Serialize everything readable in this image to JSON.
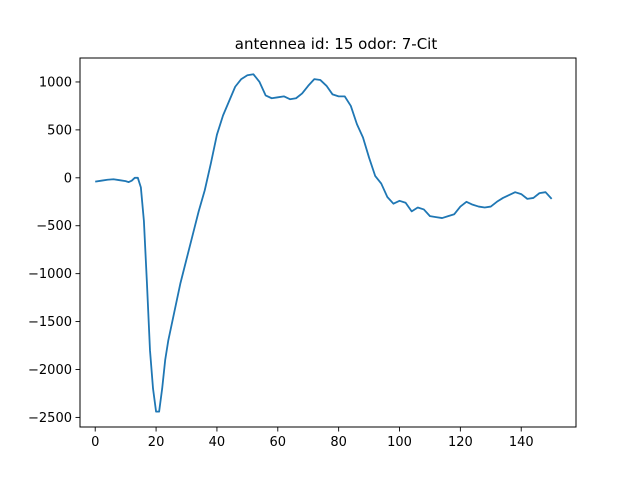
{
  "chart_data": {
    "type": "line",
    "title": "antennea id: 15    odor: 7-Cit",
    "xlabel": "",
    "ylabel": "",
    "xlim": [
      -5,
      158
    ],
    "ylim": [
      -2600,
      1250
    ],
    "xticks": [
      0,
      20,
      40,
      60,
      80,
      100,
      120,
      140
    ],
    "yticks": [
      -2500,
      -2000,
      -1500,
      -1000,
      -500,
      0,
      500,
      1000
    ],
    "xtick_labels": [
      "0",
      "20",
      "40",
      "60",
      "80",
      "100",
      "120",
      "140"
    ],
    "ytick_labels": [
      "−2500",
      "−2000",
      "−1500",
      "−1000",
      "−500",
      "0",
      "500",
      "1000"
    ],
    "grid": false,
    "series": [
      {
        "color": "#1f77b4",
        "x": [
          0,
          2,
          4,
          6,
          8,
          10,
          11,
          12,
          13,
          14,
          15,
          16,
          17,
          18,
          19,
          20,
          21,
          22,
          23,
          24,
          26,
          28,
          30,
          32,
          34,
          36,
          38,
          40,
          42,
          44,
          46,
          48,
          50,
          52,
          54,
          56,
          58,
          60,
          62,
          64,
          66,
          68,
          70,
          72,
          74,
          76,
          78,
          80,
          82,
          84,
          86,
          88,
          90,
          92,
          94,
          96,
          98,
          100,
          102,
          104,
          106,
          108,
          110,
          112,
          114,
          116,
          118,
          120,
          122,
          124,
          126,
          128,
          130,
          132,
          134,
          136,
          138,
          140,
          142,
          144,
          146,
          148,
          150
        ],
        "y": [
          -40,
          -30,
          -20,
          -15,
          -25,
          -35,
          -45,
          -30,
          0,
          0,
          -100,
          -450,
          -1100,
          -1800,
          -2200,
          -2440,
          -2440,
          -2200,
          -1900,
          -1700,
          -1400,
          -1100,
          -850,
          -600,
          -350,
          -130,
          150,
          450,
          650,
          800,
          950,
          1030,
          1070,
          1080,
          1000,
          860,
          830,
          840,
          850,
          820,
          830,
          880,
          960,
          1030,
          1020,
          960,
          870,
          850,
          850,
          750,
          560,
          420,
          210,
          20,
          -60,
          -200,
          -270,
          -240,
          -260,
          -350,
          -310,
          -330,
          -400,
          -410,
          -420,
          -400,
          -380,
          -300,
          -250,
          -280,
          -300,
          -310,
          -300,
          -250,
          -210,
          -180,
          -150,
          -170,
          -220,
          -210,
          -160,
          -150,
          -220
        ]
      }
    ]
  }
}
